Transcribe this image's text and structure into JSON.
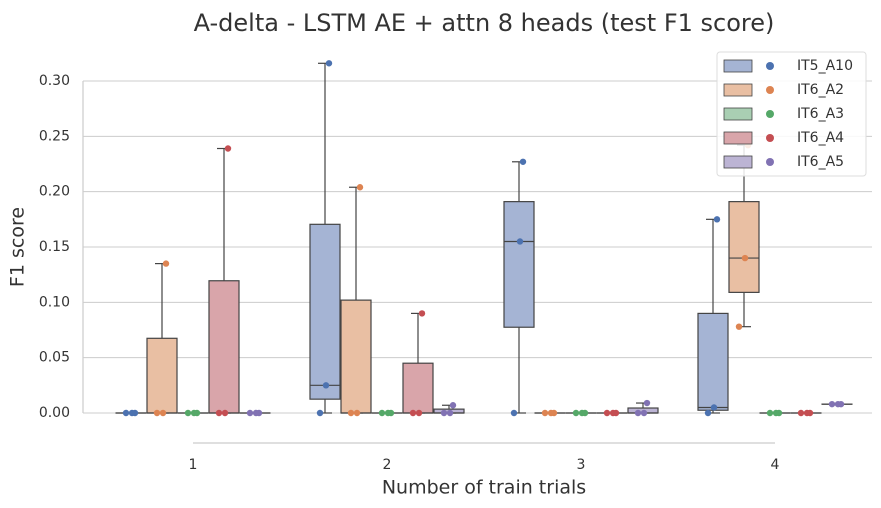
{
  "chart_data": {
    "type": "box",
    "title": "A-delta - LSTM AE + attn 8 heads (test F1 score)",
    "x_label": "Number of train trials",
    "y_label": "F1 score",
    "categories": [
      "1",
      "2",
      "3",
      "4"
    ],
    "ylim": [
      -0.025,
      0.32
    ],
    "yticks": [
      {
        "value": 0,
        "label": "0.00"
      },
      {
        "value": 0.05,
        "label": "0.05"
      },
      {
        "value": 0.1,
        "label": "0.10"
      },
      {
        "value": 0.15,
        "label": "0.15"
      },
      {
        "value": 0.2,
        "label": "0.20"
      },
      {
        "value": 0.25,
        "label": "0.25"
      },
      {
        "value": 0.3,
        "label": "0.30"
      }
    ],
    "grid": true,
    "legend": "upper right",
    "series": [
      {
        "name": "IT5_A10",
        "color": "#4c72b0",
        "box_color": "#a5b4d4",
        "boxes": [
          [
            0,
            0,
            0,
            0,
            0
          ],
          [
            0,
            0.0125,
            0.025,
            0.1705,
            0.316
          ],
          [
            0,
            0.0775,
            0.155,
            0.191,
            0.227
          ],
          [
            0,
            0.0025,
            0.005,
            0.09,
            0.175
          ]
        ],
        "points": [
          [
            0,
            0,
            0
          ],
          [
            0,
            0.025,
            0.316
          ],
          [
            0,
            0.155,
            0.227
          ],
          [
            0,
            0.005,
            0.175
          ]
        ]
      },
      {
        "name": "IT6_A2",
        "color": "#dd8452",
        "box_color": "#e9bfa3",
        "boxes": [
          [
            0,
            0,
            0,
            0.0675,
            0.135
          ],
          [
            0,
            0,
            0,
            0.102,
            0.204
          ],
          [
            0,
            0,
            0,
            0,
            0
          ],
          [
            0.078,
            0.109,
            0.14,
            0.191,
            0.242
          ]
        ],
        "points": [
          [
            0,
            0,
            0.135
          ],
          [
            0,
            0,
            0.204
          ],
          [
            0,
            0,
            0
          ],
          [
            0.078,
            0.14,
            0.242
          ]
        ]
      },
      {
        "name": "IT6_A3",
        "color": "#55a868",
        "box_color": "#a9cfb3",
        "boxes": [
          [
            0,
            0,
            0,
            0,
            0
          ],
          [
            0,
            0,
            0,
            0,
            0
          ],
          [
            0,
            0,
            0,
            0,
            0
          ],
          [
            0,
            0,
            0,
            0,
            0
          ]
        ],
        "points": [
          [
            0,
            0,
            0
          ],
          [
            0,
            0,
            0
          ],
          [
            0,
            0,
            0
          ],
          [
            0,
            0,
            0
          ]
        ]
      },
      {
        "name": "IT6_A4",
        "color": "#c44e52",
        "box_color": "#d9a5aa",
        "boxes": [
          [
            0,
            0,
            0,
            0.1195,
            0.239
          ],
          [
            0,
            0,
            0,
            0.045,
            0.09
          ],
          [
            0,
            0,
            0,
            0,
            0
          ],
          [
            0,
            0,
            0,
            0,
            0
          ]
        ],
        "points": [
          [
            0,
            0,
            0.239
          ],
          [
            0,
            0,
            0.09
          ],
          [
            0,
            0,
            0
          ],
          [
            0,
            0,
            0
          ]
        ]
      },
      {
        "name": "IT6_A5",
        "color": "#8172b3",
        "box_color": "#bcb4d4",
        "boxes": [
          [
            0,
            0,
            0,
            0,
            0
          ],
          [
            0,
            0,
            0,
            0.0035,
            0.007
          ],
          [
            0,
            0,
            0,
            0.0045,
            0.009
          ],
          [
            0.008,
            0.008,
            0.008,
            0.008,
            0.008
          ]
        ],
        "points": [
          [
            0,
            0,
            0
          ],
          [
            0,
            0,
            0.007
          ],
          [
            0,
            0,
            0.009
          ],
          [
            0.008,
            0.008,
            0.008
          ]
        ]
      }
    ]
  }
}
